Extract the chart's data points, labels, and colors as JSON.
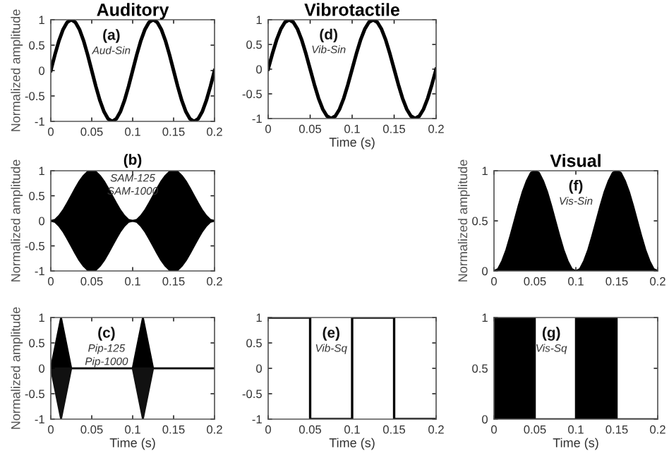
{
  "chart_data": [
    {
      "type": "line",
      "title": "Auditory",
      "ylabel": "Normalized amplitude",
      "annotations": [
        "(a)",
        "Aud-Sin"
      ],
      "x": [
        0,
        0.005,
        0.01,
        0.015,
        0.02,
        0.025,
        0.03,
        0.035,
        0.04,
        0.045,
        0.05,
        0.055,
        0.06,
        0.065,
        0.07,
        0.075,
        0.08,
        0.085,
        0.09,
        0.095,
        0.1,
        0.105,
        0.11,
        0.115,
        0.12,
        0.125,
        0.13,
        0.135,
        0.14,
        0.145,
        0.15,
        0.155,
        0.16,
        0.165,
        0.17,
        0.175,
        0.18,
        0.185,
        0.19,
        0.195,
        0.2
      ],
      "series": [
        {
          "color": "#000000",
          "values": [
            0,
            0.31,
            0.59,
            0.81,
            0.95,
            1,
            0.95,
            0.81,
            0.59,
            0.31,
            0,
            -0.31,
            -0.59,
            -0.81,
            -0.95,
            -1,
            -0.95,
            -0.81,
            -0.59,
            -0.31,
            0,
            0.31,
            0.59,
            0.81,
            0.95,
            1,
            0.95,
            0.81,
            0.59,
            0.31,
            0,
            -0.31,
            -0.59,
            -0.81,
            -0.95,
            -1,
            -0.95,
            -0.81,
            -0.59,
            -0.31,
            0
          ]
        }
      ],
      "xlim": [
        0,
        0.2
      ],
      "ylim": [
        -1,
        1
      ],
      "xticks": [
        0,
        0.05,
        0.1,
        0.15,
        0.2
      ],
      "yticks": [
        -1,
        -0.5,
        0,
        0.5,
        1
      ],
      "grid": false
    },
    {
      "type": "line",
      "title": "Vibrotactile",
      "xlabel": "Time (s)",
      "annotations": [
        "(d)",
        "Vib-Sin"
      ],
      "x": [
        0,
        0.005,
        0.01,
        0.015,
        0.02,
        0.025,
        0.03,
        0.035,
        0.04,
        0.045,
        0.05,
        0.055,
        0.06,
        0.065,
        0.07,
        0.075,
        0.08,
        0.085,
        0.09,
        0.095,
        0.1,
        0.105,
        0.11,
        0.115,
        0.12,
        0.125,
        0.13,
        0.135,
        0.14,
        0.145,
        0.15,
        0.155,
        0.16,
        0.165,
        0.17,
        0.175,
        0.18,
        0.185,
        0.19,
        0.195,
        0.2
      ],
      "series": [
        {
          "color": "#000000",
          "values": [
            0,
            0.31,
            0.59,
            0.81,
            0.95,
            1,
            0.95,
            0.81,
            0.59,
            0.31,
            0,
            -0.31,
            -0.59,
            -0.81,
            -0.95,
            -1,
            -0.95,
            -0.81,
            -0.59,
            -0.31,
            0,
            0.31,
            0.59,
            0.81,
            0.95,
            1,
            0.95,
            0.81,
            0.59,
            0.31,
            0,
            -0.31,
            -0.59,
            -0.81,
            -0.95,
            -1,
            -0.95,
            -0.81,
            -0.59,
            -0.31,
            0
          ]
        }
      ],
      "xlim": [
        0,
        0.2
      ],
      "ylim": [
        -1,
        1
      ],
      "xticks": [
        0,
        0.05,
        0.1,
        0.15,
        0.2
      ],
      "yticks": [
        -1,
        -0.5,
        0,
        0.5,
        1
      ],
      "grid": false
    },
    {
      "type": "area",
      "ylabel": "Normalized amplitude",
      "annotations": [
        "(b)",
        "SAM-125",
        "SAM-1000"
      ],
      "x": [
        0,
        0.005,
        0.01,
        0.015,
        0.02,
        0.025,
        0.03,
        0.035,
        0.04,
        0.045,
        0.05,
        0.055,
        0.06,
        0.065,
        0.07,
        0.075,
        0.08,
        0.085,
        0.09,
        0.095,
        0.1,
        0.105,
        0.11,
        0.115,
        0.12,
        0.125,
        0.13,
        0.135,
        0.14,
        0.145,
        0.15,
        0.155,
        0.16,
        0.165,
        0.17,
        0.175,
        0.18,
        0.185,
        0.19,
        0.195,
        0.2
      ],
      "series": [
        {
          "color": "#000000",
          "values": [
            0,
            0.02,
            0.1,
            0.21,
            0.35,
            0.5,
            0.65,
            0.79,
            0.9,
            0.98,
            1,
            0.98,
            0.9,
            0.79,
            0.65,
            0.5,
            0.35,
            0.21,
            0.1,
            0.02,
            0,
            0.02,
            0.1,
            0.21,
            0.35,
            0.5,
            0.65,
            0.79,
            0.9,
            0.98,
            1,
            0.98,
            0.9,
            0.79,
            0.65,
            0.5,
            0.35,
            0.21,
            0.1,
            0.02,
            0
          ]
        },
        {
          "color": "#000000",
          "values": [
            0,
            -0.02,
            -0.1,
            -0.21,
            -0.35,
            -0.5,
            -0.65,
            -0.79,
            -0.9,
            -0.98,
            -1,
            -0.98,
            -0.9,
            -0.79,
            -0.65,
            -0.5,
            -0.35,
            -0.21,
            -0.1,
            -0.02,
            0,
            -0.02,
            -0.1,
            -0.21,
            -0.35,
            -0.5,
            -0.65,
            -0.79,
            -0.9,
            -0.98,
            -1,
            -0.98,
            -0.9,
            -0.79,
            -0.65,
            -0.5,
            -0.35,
            -0.21,
            -0.1,
            -0.02,
            0
          ]
        }
      ],
      "xlim": [
        0,
        0.2
      ],
      "ylim": [
        -1,
        1
      ],
      "xticks": [
        0,
        0.05,
        0.1,
        0.15,
        0.2
      ],
      "yticks": [
        -1,
        -0.5,
        0,
        0.5,
        1
      ],
      "grid": false
    },
    {
      "type": "area",
      "title": "Visual",
      "ylabel": "Normalized amplitude",
      "annotations": [
        "(f)",
        "Vis-Sin"
      ],
      "x": [
        0,
        0.005,
        0.01,
        0.015,
        0.02,
        0.025,
        0.03,
        0.035,
        0.04,
        0.045,
        0.05,
        0.055,
        0.06,
        0.065,
        0.07,
        0.075,
        0.08,
        0.085,
        0.09,
        0.095,
        0.1,
        0.105,
        0.11,
        0.115,
        0.12,
        0.125,
        0.13,
        0.135,
        0.14,
        0.145,
        0.15,
        0.155,
        0.16,
        0.165,
        0.17,
        0.175,
        0.18,
        0.185,
        0.19,
        0.195,
        0.2
      ],
      "series": [
        {
          "color": "#000000",
          "values": [
            0,
            0.02,
            0.1,
            0.21,
            0.35,
            0.5,
            0.65,
            0.79,
            0.9,
            0.98,
            1,
            0.98,
            0.9,
            0.79,
            0.65,
            0.5,
            0.35,
            0.21,
            0.1,
            0.02,
            0,
            0.02,
            0.1,
            0.21,
            0.35,
            0.5,
            0.65,
            0.79,
            0.9,
            0.98,
            1,
            0.98,
            0.9,
            0.79,
            0.65,
            0.5,
            0.35,
            0.21,
            0.1,
            0.02,
            0
          ]
        }
      ],
      "xlim": [
        0,
        0.2
      ],
      "ylim": [
        0,
        1
      ],
      "xticks": [
        0,
        0.05,
        0.1,
        0.15,
        0.2
      ],
      "yticks": [
        0,
        0.5,
        1
      ],
      "grid": false
    },
    {
      "type": "area",
      "xlabel": "Time (s)",
      "ylabel": "Normalized amplitude",
      "annotations": [
        "(c)",
        "Pip-125",
        "Pip-1000"
      ],
      "x": [
        0,
        0.0125,
        0.025,
        0.1,
        0.1125,
        0.125,
        0.2
      ],
      "series": [
        {
          "color": "#000000",
          "values": [
            0,
            1,
            0,
            0,
            1,
            0,
            0
          ]
        },
        {
          "color": "#111111",
          "values": [
            0,
            -1,
            0,
            0,
            -1,
            0,
            0
          ]
        }
      ],
      "xlim": [
        0,
        0.2
      ],
      "ylim": [
        -1,
        1
      ],
      "xticks": [
        0,
        0.05,
        0.1,
        0.15,
        0.2
      ],
      "yticks": [
        -1,
        -0.5,
        0,
        0.5,
        1
      ],
      "grid": false
    },
    {
      "type": "step",
      "xlabel": "Time (s)",
      "annotations": [
        "(e)",
        "Vib-Sq"
      ],
      "x": [
        0,
        0.05,
        0.1,
        0.15,
        0.2
      ],
      "series": [
        {
          "color": "#000000",
          "values": [
            1,
            -1,
            1,
            -1,
            -1
          ]
        }
      ],
      "xlim": [
        0,
        0.2
      ],
      "ylim": [
        -1,
        1
      ],
      "xticks": [
        0,
        0.05,
        0.1,
        0.15,
        0.2
      ],
      "yticks": [
        -1,
        -0.5,
        0,
        0.5,
        1
      ],
      "grid": false
    },
    {
      "type": "area",
      "xlabel": "Time (s)",
      "annotations": [
        "(g)",
        "Vis-Sq"
      ],
      "x": [
        0,
        0.05,
        0.05,
        0.1,
        0.1,
        0.15,
        0.15,
        0.2
      ],
      "series": [
        {
          "color": "#000000",
          "values": [
            1,
            1,
            0,
            0,
            1,
            1,
            0,
            0
          ]
        }
      ],
      "xlim": [
        0,
        0.2
      ],
      "ylim": [
        0,
        1
      ],
      "xticks": [
        0,
        0.05,
        0.1,
        0.15,
        0.2
      ],
      "yticks": [
        0,
        0.5,
        1
      ],
      "grid": false
    }
  ]
}
